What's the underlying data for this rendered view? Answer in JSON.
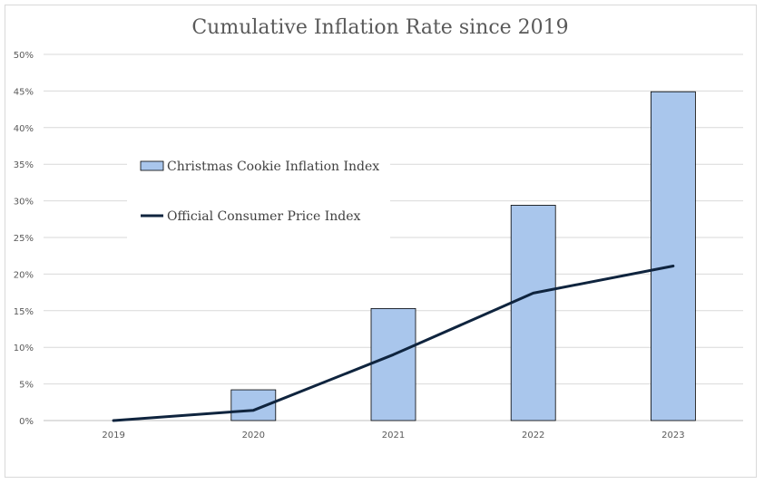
{
  "chart_data": {
    "type": "bar",
    "title": "Cumulative Inflation Rate since 2019",
    "xlabel": "",
    "ylabel": "",
    "categories": [
      "2019",
      "2020",
      "2021",
      "2022",
      "2023"
    ],
    "ylim": [
      0,
      50
    ],
    "yticks": [
      0,
      5,
      10,
      15,
      20,
      25,
      30,
      35,
      40,
      45,
      50
    ],
    "ytick_labels": [
      "0%",
      "5%",
      "10%",
      "15%",
      "20%",
      "25%",
      "30%",
      "35%",
      "40%",
      "45%",
      "50%"
    ],
    "grid": true,
    "legend_position": "left",
    "series": [
      {
        "name": "Christmas Cookie Inflation Index",
        "kind": "bar",
        "color": "#a9c6ec",
        "edge_color": "#000000",
        "values": [
          0,
          4.2,
          15.3,
          29.4,
          44.9
        ]
      },
      {
        "name": "Official Consumer Price Index",
        "kind": "line",
        "color": "#0f243e",
        "values": [
          0,
          1.4,
          9.0,
          17.4,
          21.1
        ]
      }
    ]
  }
}
